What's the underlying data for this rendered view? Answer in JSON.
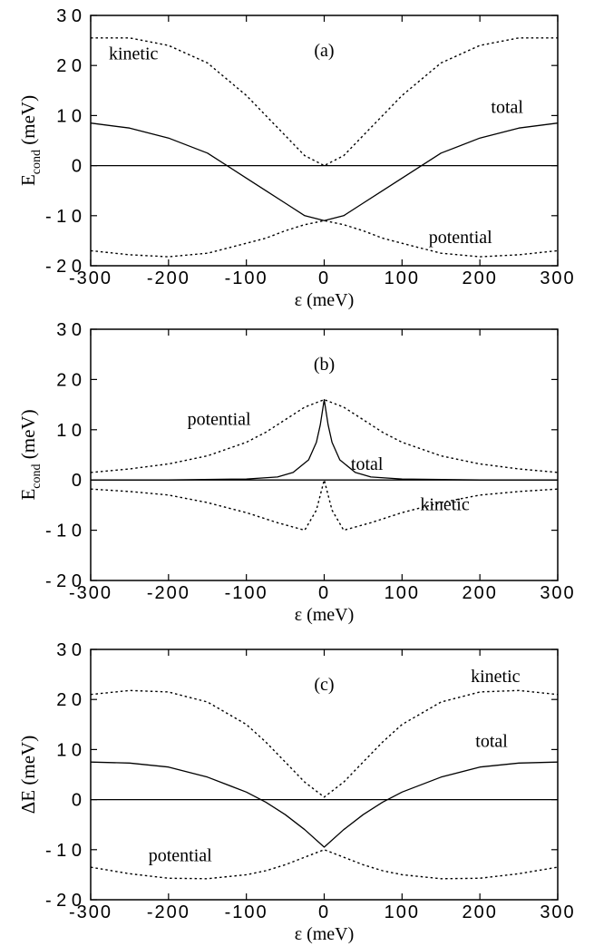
{
  "chart_data": [
    {
      "type": "line",
      "panel_label": "(a)",
      "xlabel": "ε (meV)",
      "ylabel_main": "E",
      "ylabel_sub": "cond",
      "ylabel_unit": "(meV)",
      "xlim": [
        -300,
        300
      ],
      "ylim": [
        -20,
        30
      ],
      "xticks": [
        "-300",
        "-200",
        "-100",
        "0",
        "100",
        "200",
        "300"
      ],
      "yticks": [
        "- 2 0",
        "- 1 0",
        "0",
        "1 0",
        "2 0",
        "3 0"
      ],
      "zero_line": true,
      "series": [
        {
          "name": "kinetic",
          "style": "dotted",
          "x": [
            -300,
            -250,
            -200,
            -150,
            -100,
            -75,
            -50,
            -25,
            0,
            25,
            50,
            75,
            100,
            150,
            200,
            250,
            300
          ],
          "y": [
            25.5,
            25.5,
            24.0,
            20.5,
            14.0,
            10.0,
            6.0,
            2.0,
            0.0,
            2.0,
            6.0,
            10.0,
            14.0,
            20.5,
            24.0,
            25.5,
            25.5
          ]
        },
        {
          "name": "total",
          "style": "solid",
          "x": [
            -300,
            -250,
            -200,
            -150,
            -100,
            -75,
            -50,
            -25,
            0,
            25,
            50,
            75,
            100,
            150,
            200,
            250,
            300
          ],
          "y": [
            8.5,
            7.5,
            5.5,
            2.5,
            -2.5,
            -5.0,
            -7.5,
            -10.0,
            -11.0,
            -10.0,
            -7.5,
            -5.0,
            -2.5,
            2.5,
            5.5,
            7.5,
            8.5
          ]
        },
        {
          "name": "potential",
          "style": "dotted",
          "x": [
            -300,
            -250,
            -200,
            -150,
            -100,
            -75,
            -50,
            -25,
            0,
            25,
            50,
            75,
            100,
            150,
            200,
            250,
            300
          ],
          "y": [
            -17.0,
            -17.8,
            -18.2,
            -17.5,
            -15.5,
            -14.5,
            -13.0,
            -11.8,
            -11.0,
            -11.8,
            -13.0,
            -14.5,
            -15.5,
            -17.5,
            -18.2,
            -17.8,
            -17.0
          ]
        }
      ],
      "annotations": [
        {
          "text": "kinetic",
          "x": -245,
          "y": 21.2
        },
        {
          "text": "total",
          "x": 235,
          "y": 10.5
        },
        {
          "text": "potential",
          "x": 175,
          "y": -15.5
        }
      ]
    },
    {
      "type": "line",
      "panel_label": "(b)",
      "xlabel": "ε (meV)",
      "ylabel_main": "E",
      "ylabel_sub": "cond",
      "ylabel_unit": "(meV)",
      "xlim": [
        -300,
        300
      ],
      "ylim": [
        -20,
        30
      ],
      "xticks": [
        "-300",
        "-200",
        "-100",
        "0",
        "100",
        "200",
        "300"
      ],
      "yticks": [
        "- 2 0",
        "- 1 0",
        "0",
        "1 0",
        "2 0",
        "3 0"
      ],
      "zero_line": true,
      "series": [
        {
          "name": "potential",
          "style": "dotted",
          "x": [
            -300,
            -250,
            -200,
            -150,
            -100,
            -75,
            -50,
            -25,
            0,
            25,
            50,
            75,
            100,
            150,
            200,
            250,
            300
          ],
          "y": [
            1.5,
            2.2,
            3.2,
            4.8,
            7.5,
            9.5,
            12.0,
            14.5,
            16.0,
            14.5,
            12.0,
            9.5,
            7.5,
            4.8,
            3.2,
            2.2,
            1.5
          ]
        },
        {
          "name": "total",
          "style": "solid",
          "x": [
            -300,
            -200,
            -100,
            -60,
            -40,
            -20,
            -10,
            -5,
            0,
            5,
            10,
            20,
            40,
            60,
            100,
            200,
            300
          ],
          "y": [
            0.0,
            0.0,
            0.2,
            0.6,
            1.5,
            4.0,
            7.5,
            11.0,
            16.0,
            11.0,
            7.5,
            4.0,
            1.5,
            0.6,
            0.2,
            0.0,
            0.0
          ]
        },
        {
          "name": "kinetic",
          "style": "dotted",
          "x": [
            -300,
            -250,
            -200,
            -150,
            -100,
            -60,
            -25,
            -10,
            0,
            10,
            25,
            60,
            100,
            150,
            200,
            250,
            300
          ],
          "y": [
            -1.8,
            -2.3,
            -3.0,
            -4.5,
            -6.5,
            -8.5,
            -10.0,
            -6.0,
            0.0,
            -6.0,
            -10.0,
            -8.5,
            -6.5,
            -4.5,
            -3.0,
            -2.3,
            -1.8
          ]
        }
      ],
      "annotations": [
        {
          "text": "potential",
          "x": -135,
          "y": 11.0
        },
        {
          "text": "total",
          "x": 55,
          "y": 2.0
        },
        {
          "text": "kinetic",
          "x": 155,
          "y": -6.0
        }
      ]
    },
    {
      "type": "line",
      "panel_label": "(c)",
      "xlabel": "ε (meV)",
      "ylabel_main": "ΔE",
      "ylabel_sub": "",
      "ylabel_unit": "(meV)",
      "xlim": [
        -300,
        300
      ],
      "ylim": [
        -20,
        30
      ],
      "xticks": [
        "-300",
        "-200",
        "-100",
        "0",
        "100",
        "200",
        "300"
      ],
      "yticks": [
        "- 2 0",
        "- 1 0",
        "0",
        "1 0",
        "2 0",
        "3 0"
      ],
      "zero_line": true,
      "series": [
        {
          "name": "kinetic",
          "style": "dotted",
          "x": [
            -300,
            -250,
            -200,
            -150,
            -100,
            -75,
            -50,
            -25,
            0,
            25,
            50,
            75,
            100,
            150,
            200,
            250,
            300
          ],
          "y": [
            21.0,
            21.8,
            21.5,
            19.5,
            15.0,
            11.5,
            7.5,
            3.5,
            0.5,
            3.5,
            7.5,
            11.5,
            15.0,
            19.5,
            21.5,
            21.8,
            21.0
          ]
        },
        {
          "name": "total",
          "style": "solid",
          "x": [
            -300,
            -250,
            -200,
            -150,
            -100,
            -75,
            -50,
            -25,
            0,
            25,
            50,
            75,
            100,
            150,
            200,
            250,
            300
          ],
          "y": [
            7.5,
            7.3,
            6.5,
            4.5,
            1.5,
            -0.5,
            -3.0,
            -6.0,
            -9.5,
            -6.0,
            -3.0,
            -0.5,
            1.5,
            4.5,
            6.5,
            7.3,
            7.5
          ]
        },
        {
          "name": "potential",
          "style": "dotted",
          "x": [
            -300,
            -250,
            -200,
            -150,
            -100,
            -75,
            -50,
            -25,
            0,
            25,
            50,
            75,
            100,
            150,
            200,
            250,
            300
          ],
          "y": [
            -13.5,
            -14.8,
            -15.7,
            -15.8,
            -15.0,
            -14.2,
            -13.0,
            -11.5,
            -10.0,
            -11.5,
            -13.0,
            -14.2,
            -15.0,
            -15.8,
            -15.7,
            -14.8,
            -13.5
          ]
        }
      ],
      "annotations": [
        {
          "text": "kinetic",
          "x": 220,
          "y": 23.5
        },
        {
          "text": "total",
          "x": 215,
          "y": 10.5
        },
        {
          "text": "potential",
          "x": -185,
          "y": -12.3
        }
      ]
    }
  ]
}
